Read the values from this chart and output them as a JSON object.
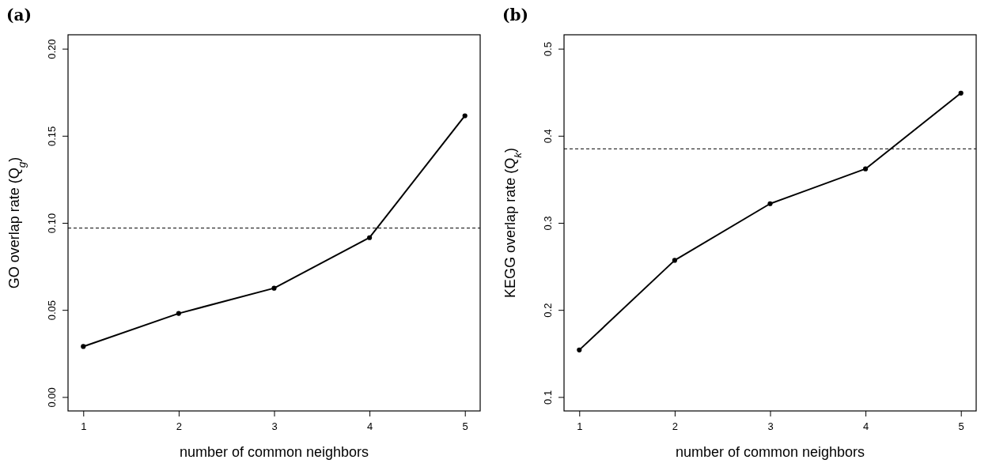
{
  "chart_data": [
    {
      "type": "line",
      "title": "(a)",
      "xlabel": "number of common neighbors",
      "ylabel": "GO overlap rate (Q$_{g}$)",
      "x": [
        1,
        2,
        3,
        4,
        5
      ],
      "series": [
        {
          "color": "#000000",
          "values": [
            0.029,
            0.048,
            0.0625,
            0.0915,
            0.1615
          ]
        }
      ],
      "xlim": [
        0.84,
        5.16
      ],
      "xticks": [
        1,
        2,
        3,
        4,
        5
      ],
      "ylim": [
        -0.008,
        0.208
      ],
      "yticks": [
        {
          "value": 0,
          "label": "0.00"
        },
        0.05,
        {
          "value": 0.1,
          "label": "0.10"
        },
        0.15,
        {
          "value": 0.2,
          "label": "0.20"
        }
      ],
      "ref_lines": [
        {
          "axis": "y",
          "value": 0.097,
          "line_style": "dashed",
          "color": "#000000"
        }
      ],
      "marker": "circle",
      "line_style": "solid"
    },
    {
      "type": "line",
      "title": "(b)",
      "xlabel": "number of common neighbors",
      "ylabel": "KEGG overlap rate (Q$_{k}$)",
      "x": [
        1,
        2,
        3,
        4,
        5
      ],
      "series": [
        {
          "color": "#000000",
          "values": [
            0.154,
            0.257,
            0.322,
            0.362,
            0.449
          ]
        }
      ],
      "xlim": [
        0.84,
        5.16
      ],
      "xticks": [
        1,
        2,
        3,
        4,
        5
      ],
      "ylim": [
        0.084,
        0.516
      ],
      "yticks": [
        0.1,
        0.2,
        0.3,
        0.4,
        0.5
      ],
      "ref_lines": [
        {
          "axis": "y",
          "value": 0.385,
          "line_style": "dashed",
          "color": "#000000"
        }
      ],
      "marker": "circle",
      "line_style": "solid"
    }
  ]
}
